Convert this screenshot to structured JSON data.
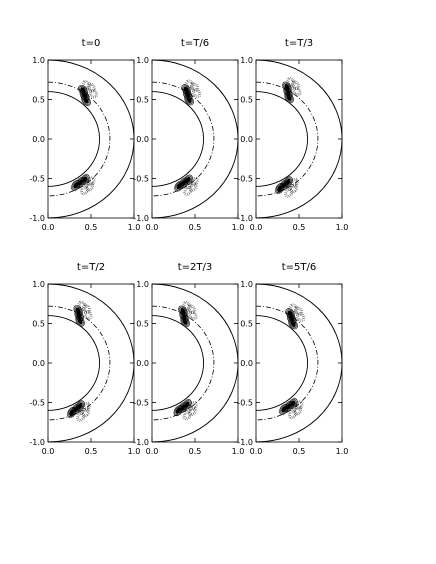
{
  "chart_data": [
    {
      "type": "contour",
      "title": "t=0",
      "xlim": [
        0,
        1
      ],
      "ylim": [
        -1,
        1
      ],
      "xticks": [
        "0.0",
        "0.5",
        "1.0"
      ],
      "yticks": [
        "-1.0",
        "-0.5",
        "0.0",
        "0.5",
        "1.0"
      ],
      "shell_radii": {
        "inner": 0.6,
        "mid_dashdot": 0.72,
        "outer": 1.0
      },
      "features": [
        {
          "r": 0.72,
          "lat_deg": 52
        },
        {
          "r": 0.69,
          "lat_deg": -55
        }
      ]
    },
    {
      "type": "contour",
      "title": "t=T/6",
      "xlim": [
        0,
        1
      ],
      "ylim": [
        -1,
        1
      ],
      "xticks": [
        "0.0",
        "0.5",
        "1.0"
      ],
      "yticks": [
        "-1.0",
        "-0.5",
        "0.0",
        "0.5",
        "1.0"
      ],
      "shell_radii": {
        "inner": 0.6,
        "mid_dashdot": 0.72,
        "outer": 1.0
      },
      "features": [
        {
          "r": 0.72,
          "lat_deg": 53
        },
        {
          "r": 0.69,
          "lat_deg": -56
        }
      ]
    },
    {
      "type": "contour",
      "title": "t=T/3",
      "xlim": [
        0,
        1
      ],
      "ylim": [
        -1,
        1
      ],
      "xticks": [
        "0.0",
        "0.5",
        "1.0"
      ],
      "yticks": [
        "-1.0",
        "-0.5",
        "0.0",
        "0.5",
        "1.0"
      ],
      "shell_radii": {
        "inner": 0.6,
        "mid_dashdot": 0.72,
        "outer": 1.0
      },
      "features": [
        {
          "r": 0.72,
          "lat_deg": 57
        },
        {
          "r": 0.69,
          "lat_deg": -60
        }
      ]
    },
    {
      "type": "contour",
      "title": "t=T/2",
      "xlim": [
        0,
        1
      ],
      "ylim": [
        -1,
        1
      ],
      "xticks": [
        "0.0",
        "0.5",
        "1.0"
      ],
      "yticks": [
        "-1.0",
        "-0.5",
        "0.0",
        "0.5",
        "1.0"
      ],
      "shell_radii": {
        "inner": 0.6,
        "mid_dashdot": 0.72,
        "outer": 1.0
      },
      "features": [
        {
          "r": 0.72,
          "lat_deg": 58
        },
        {
          "r": 0.69,
          "lat_deg": -60
        }
      ]
    },
    {
      "type": "contour",
      "title": "t=2T/3",
      "xlim": [
        0,
        1
      ],
      "ylim": [
        -1,
        1
      ],
      "xticks": [
        "0.0",
        "0.5",
        "1.0"
      ],
      "yticks": [
        "-1.0",
        "-0.5",
        "0.0",
        "0.5",
        "1.0"
      ],
      "shell_radii": {
        "inner": 0.6,
        "mid_dashdot": 0.72,
        "outer": 1.0
      },
      "features": [
        {
          "r": 0.72,
          "lat_deg": 57
        },
        {
          "r": 0.69,
          "lat_deg": -57
        }
      ]
    },
    {
      "type": "contour",
      "title": "t=5T/6",
      "xlim": [
        0,
        1
      ],
      "ylim": [
        -1,
        1
      ],
      "xticks": [
        "0.0",
        "0.5",
        "1.0"
      ],
      "yticks": [
        "-1.0",
        "-0.5",
        "0.0",
        "0.5",
        "1.0"
      ],
      "shell_radii": {
        "inner": 0.6,
        "mid_dashdot": 0.72,
        "outer": 1.0
      },
      "features": [
        {
          "r": 0.72,
          "lat_deg": 53
        },
        {
          "r": 0.69,
          "lat_deg": -55
        }
      ]
    }
  ],
  "colors": {
    "line": "#000000",
    "background": "#ffffff"
  }
}
